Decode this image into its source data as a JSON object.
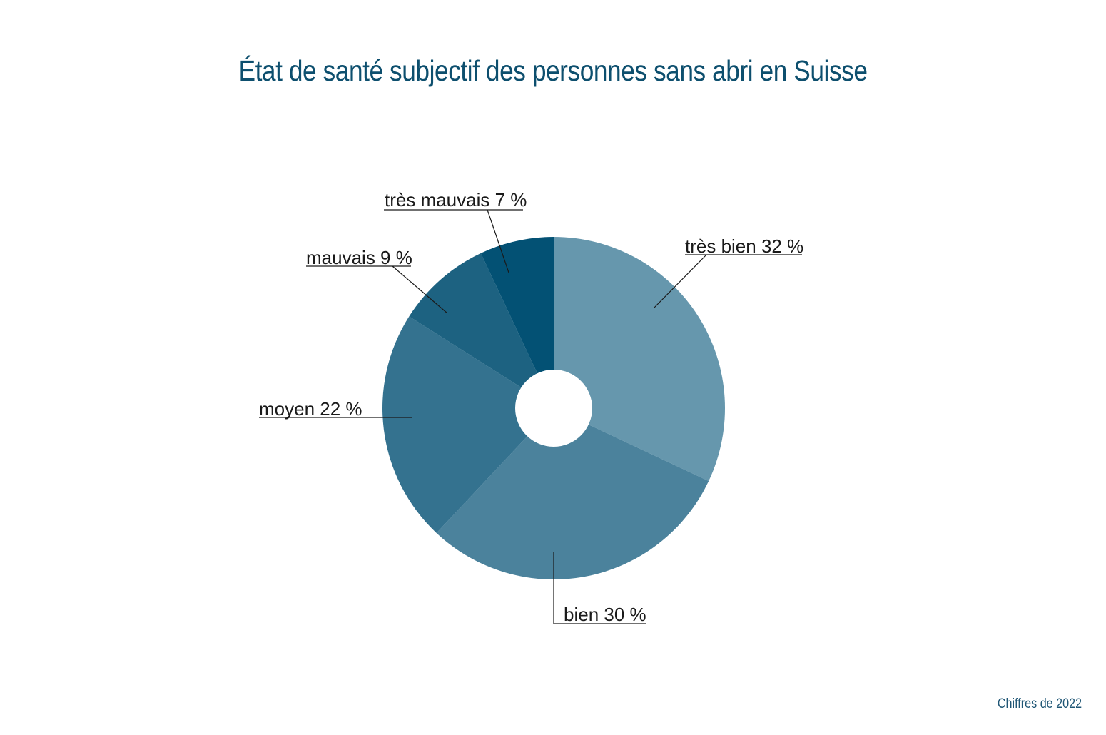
{
  "title": "État de santé subjectif des personnes sans abri en Suisse",
  "source": "Chiffres de 2022",
  "chart_data": {
    "type": "pie",
    "donut": true,
    "title": "État de santé subjectif des personnes sans abri en Suisse",
    "note": "Chiffres de 2022",
    "categories": [
      "très bien",
      "bien",
      "moyen",
      "mauvais",
      "très mauvais"
    ],
    "values": [
      32,
      30,
      22,
      9,
      7
    ],
    "unit": "%",
    "colors": [
      "#6697ad",
      "#4b829c",
      "#34728f",
      "#1d6281",
      "#035174"
    ],
    "labels": [
      "très bien  32 %",
      "bien  30 %",
      "moyen  22 %",
      "mauvais  9 %",
      "très mauvais  7 %"
    ]
  },
  "labels": {
    "tres_bien": "très bien  32 %",
    "bien": "bien  30 %",
    "moyen": "moyen  22 %",
    "mauvais": "mauvais  9 %",
    "tres_mauvais": "très mauvais  7 %"
  }
}
